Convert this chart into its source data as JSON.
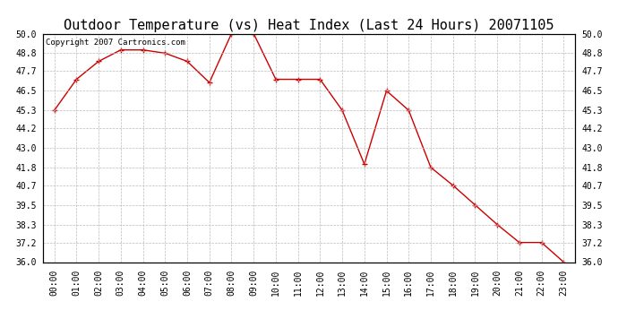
{
  "title": "Outdoor Temperature (vs) Heat Index (Last 24 Hours) 20071105",
  "copyright_text": "Copyright 2007 Cartronics.com",
  "hours": [
    "00:00",
    "01:00",
    "02:00",
    "03:00",
    "04:00",
    "05:00",
    "06:00",
    "07:00",
    "08:00",
    "09:00",
    "10:00",
    "11:00",
    "12:00",
    "13:00",
    "14:00",
    "15:00",
    "16:00",
    "17:00",
    "18:00",
    "19:00",
    "20:00",
    "21:00",
    "22:00",
    "23:00"
  ],
  "values": [
    45.3,
    47.2,
    48.3,
    49.0,
    49.0,
    48.8,
    48.3,
    47.0,
    50.0,
    50.0,
    47.2,
    47.2,
    47.2,
    45.3,
    42.0,
    46.5,
    45.3,
    41.8,
    40.7,
    39.5,
    38.3,
    37.2,
    37.2,
    36.0
  ],
  "line_color": "#cc0000",
  "marker": "+",
  "marker_color": "#cc0000",
  "background_color": "#ffffff",
  "plot_bg_color": "#ffffff",
  "grid_color": "#bbbbbb",
  "ylim_min": 36.0,
  "ylim_max": 50.0,
  "yticks": [
    36.0,
    37.2,
    38.3,
    39.5,
    40.7,
    41.8,
    43.0,
    44.2,
    45.3,
    46.5,
    47.7,
    48.8,
    50.0
  ],
  "title_fontsize": 11,
  "copyright_fontsize": 6.5,
  "tick_fontsize": 7,
  "border_color": "#000000"
}
